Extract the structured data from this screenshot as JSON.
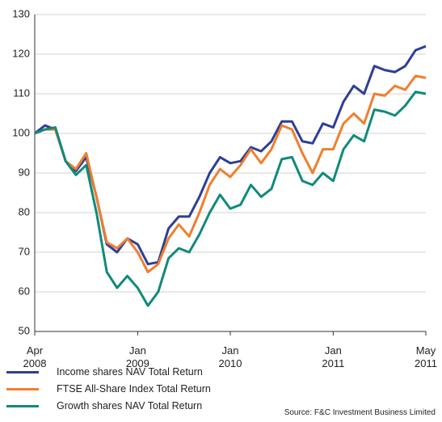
{
  "chart_data": {
    "type": "line",
    "categories": [
      "Apr 2008",
      null,
      null,
      null,
      null,
      null,
      null,
      null,
      null,
      null,
      "Jan 2009",
      null,
      null,
      null,
      null,
      null,
      null,
      null,
      null,
      "Jan 2010",
      null,
      null,
      null,
      null,
      null,
      null,
      null,
      null,
      null,
      "Jan 2011",
      null,
      null,
      null,
      null,
      null,
      null,
      null,
      null,
      "May 2011"
    ],
    "series": [
      {
        "name": "Income shares NAV Total Return",
        "color": "#2e3f96",
        "values": [
          100,
          102,
          101,
          93,
          90.5,
          94,
          84,
          72,
          70,
          73.5,
          72,
          67,
          67.5,
          76,
          79,
          79,
          84,
          90,
          94,
          92.5,
          93,
          96.5,
          95.5,
          98,
          103,
          103,
          98,
          97.5,
          102.5,
          101.5,
          108,
          112,
          110,
          117,
          116,
          115.5,
          117,
          121,
          122
        ]
      },
      {
        "name": "FTSE All-Share Index Total Return",
        "color": "#f07f2e",
        "values": [
          100,
          101,
          101,
          93,
          91,
          95,
          84,
          72.5,
          71,
          73.5,
          70,
          65,
          67,
          73.5,
          77,
          74,
          80,
          87,
          91,
          89,
          92,
          96,
          92.5,
          96,
          102,
          101,
          95,
          90,
          96,
          96,
          102.5,
          105,
          102.5,
          110,
          109.5,
          112,
          111,
          114.5,
          114
        ]
      },
      {
        "name": "Growth shares NAV Total Return",
        "color": "#108a7a",
        "values": [
          100,
          101,
          101.5,
          93,
          89.5,
          92,
          80,
          65,
          61,
          64,
          61,
          56.5,
          60,
          68.5,
          71,
          70,
          74.5,
          80,
          84.5,
          81,
          82,
          87,
          84,
          86,
          93.5,
          94,
          88,
          87,
          90,
          88,
          96,
          99.5,
          98,
          106,
          105.5,
          104.5,
          107,
          110.5,
          110
        ]
      }
    ],
    "ylim": [
      50,
      130
    ],
    "yticks": [
      50,
      60,
      70,
      80,
      90,
      100,
      110,
      120,
      130
    ],
    "grid": true,
    "source": "Source: F&C Investment Business Limited"
  }
}
